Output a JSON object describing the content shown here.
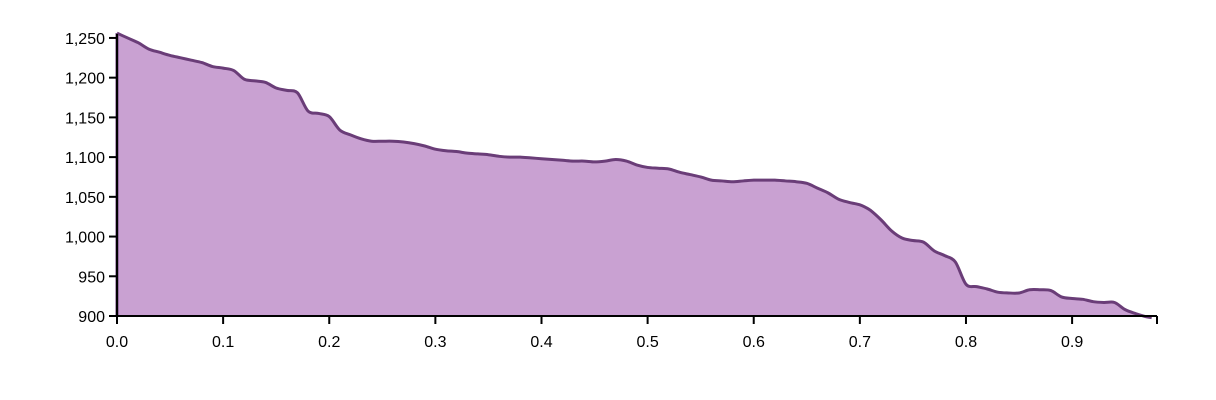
{
  "chart_data": {
    "type": "area",
    "title": "",
    "xlabel": "",
    "ylabel": "",
    "grid": false,
    "legend": "none",
    "xlim": [
      0,
      0.98
    ],
    "ylim": [
      900,
      1260
    ],
    "x_ticks": [
      "0.0",
      "0.1",
      "0.2",
      "0.3",
      "0.4",
      "0.5",
      "0.6",
      "0.7",
      "0.8",
      "0.9"
    ],
    "x_tick_values": [
      0.0,
      0.1,
      0.2,
      0.3,
      0.4,
      0.5,
      0.6,
      0.7,
      0.8,
      0.9
    ],
    "y_ticks": [
      "900",
      "950",
      "1,000",
      "1,050",
      "1,100",
      "1,150",
      "1,200",
      "1,250"
    ],
    "y_tick_values": [
      900,
      950,
      1000,
      1050,
      1100,
      1150,
      1200,
      1250
    ],
    "colors": {
      "fill": "#c9a1d2",
      "stroke": "#6a3d78",
      "axis": "#000000"
    },
    "series": [
      {
        "x": [
          0.0,
          0.01,
          0.02,
          0.03,
          0.04,
          0.05,
          0.06,
          0.07,
          0.08,
          0.09,
          0.1,
          0.11,
          0.12,
          0.13,
          0.14,
          0.15,
          0.16,
          0.17,
          0.18,
          0.19,
          0.2,
          0.21,
          0.22,
          0.23,
          0.24,
          0.25,
          0.26,
          0.27,
          0.28,
          0.29,
          0.3,
          0.31,
          0.32,
          0.33,
          0.34,
          0.35,
          0.36,
          0.37,
          0.38,
          0.39,
          0.4,
          0.41,
          0.42,
          0.43,
          0.44,
          0.45,
          0.46,
          0.47,
          0.48,
          0.49,
          0.5,
          0.51,
          0.52,
          0.53,
          0.54,
          0.55,
          0.56,
          0.57,
          0.58,
          0.59,
          0.6,
          0.61,
          0.62,
          0.63,
          0.64,
          0.65,
          0.66,
          0.67,
          0.68,
          0.69,
          0.7,
          0.705,
          0.71,
          0.72,
          0.73,
          0.74,
          0.75,
          0.76,
          0.77,
          0.78,
          0.79,
          0.8,
          0.81,
          0.82,
          0.83,
          0.84,
          0.85,
          0.86,
          0.87,
          0.88,
          0.89,
          0.9,
          0.91,
          0.92,
          0.93,
          0.94,
          0.95,
          0.96,
          0.97,
          0.975
        ],
        "y": [
          1256,
          1250,
          1244,
          1236,
          1232,
          1228,
          1225,
          1222,
          1219,
          1214,
          1212,
          1209,
          1198,
          1196,
          1194,
          1187,
          1184,
          1181,
          1158,
          1155,
          1151,
          1134,
          1128,
          1123,
          1120,
          1120,
          1120,
          1119,
          1117,
          1114,
          1110,
          1108,
          1107,
          1105,
          1104,
          1103,
          1101,
          1100,
          1100,
          1099,
          1098,
          1097,
          1096,
          1095,
          1095,
          1094,
          1095,
          1097,
          1095,
          1090,
          1087,
          1086,
          1085,
          1081,
          1078,
          1075,
          1071,
          1070,
          1069,
          1070,
          1071,
          1071,
          1071,
          1070,
          1069,
          1067,
          1061,
          1055,
          1047,
          1043,
          1040,
          1037,
          1033,
          1021,
          1007,
          998,
          995,
          993,
          982,
          976,
          968,
          940,
          937,
          934,
          930,
          929,
          929,
          933,
          933,
          932,
          924,
          922,
          921,
          918,
          917,
          917,
          908,
          903,
          899,
          898
        ]
      }
    ]
  }
}
